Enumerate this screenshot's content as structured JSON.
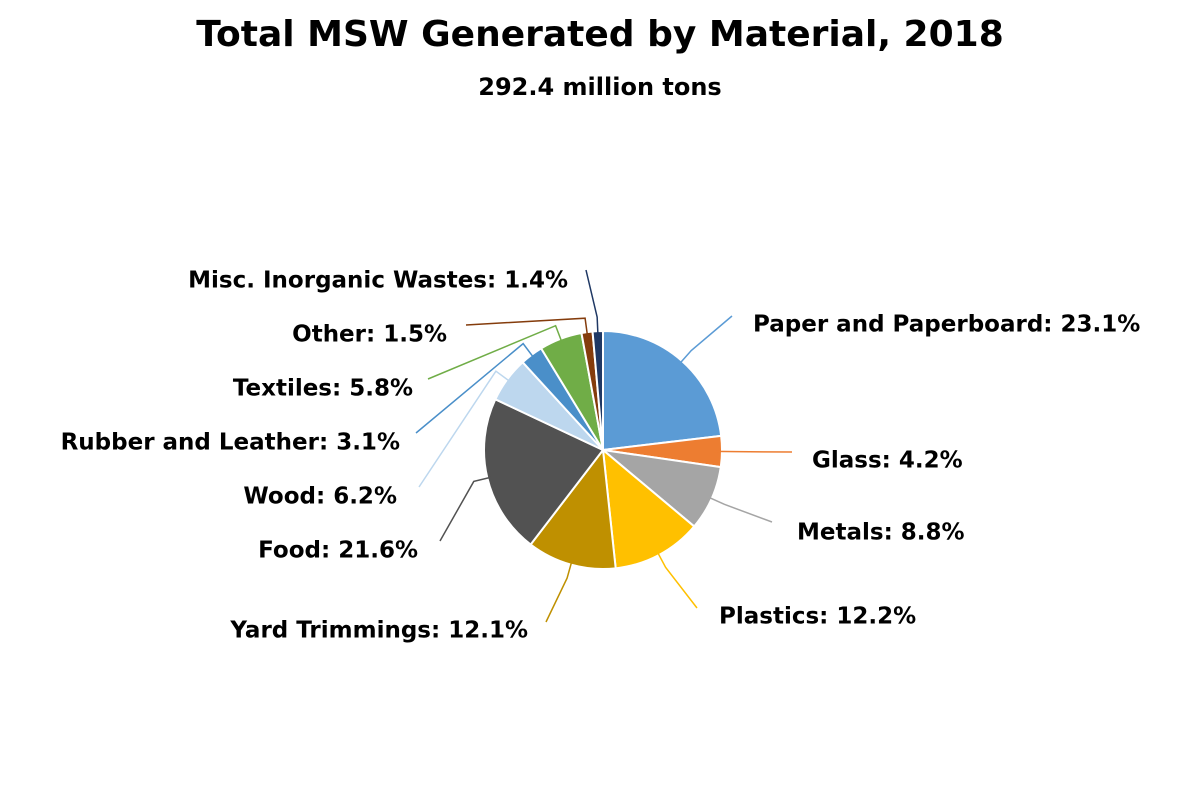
{
  "chart_data": {
    "type": "pie",
    "title": "Total MSW Generated by Material, 2018",
    "subtitle": "292.4 million tons",
    "categories": [
      "Paper and Paperboard",
      "Glass",
      "Metals",
      "Plastics",
      "Yard Trimmings",
      "Food",
      "Wood",
      "Rubber and Leather",
      "Textiles",
      "Other",
      "Misc. Inorganic Wastes"
    ],
    "values": [
      23.1,
      4.2,
      8.8,
      12.2,
      12.1,
      21.6,
      6.2,
      3.1,
      5.8,
      1.5,
      1.4
    ],
    "value_labels": [
      "Paper and Paperboard: 23.1%",
      "Glass: 4.2%",
      "Metals: 8.8%",
      "Plastics: 12.2%",
      "Yard Trimmings: 12.1%",
      "Food: 21.6%",
      "Wood: 6.2%",
      "Rubber and Leather: 3.1%",
      "Textiles: 5.8%",
      "Other: 1.5%",
      "Misc. Inorganic Wastes: 1.4%"
    ],
    "colors": [
      "#5b9bd5",
      "#ed7d31",
      "#a5a5a5",
      "#ffc000",
      "#bf9000",
      "#525252",
      "#bdd7ee",
      "#4a8fc9",
      "#70ad47",
      "#843c0c",
      "#1f3864"
    ]
  }
}
